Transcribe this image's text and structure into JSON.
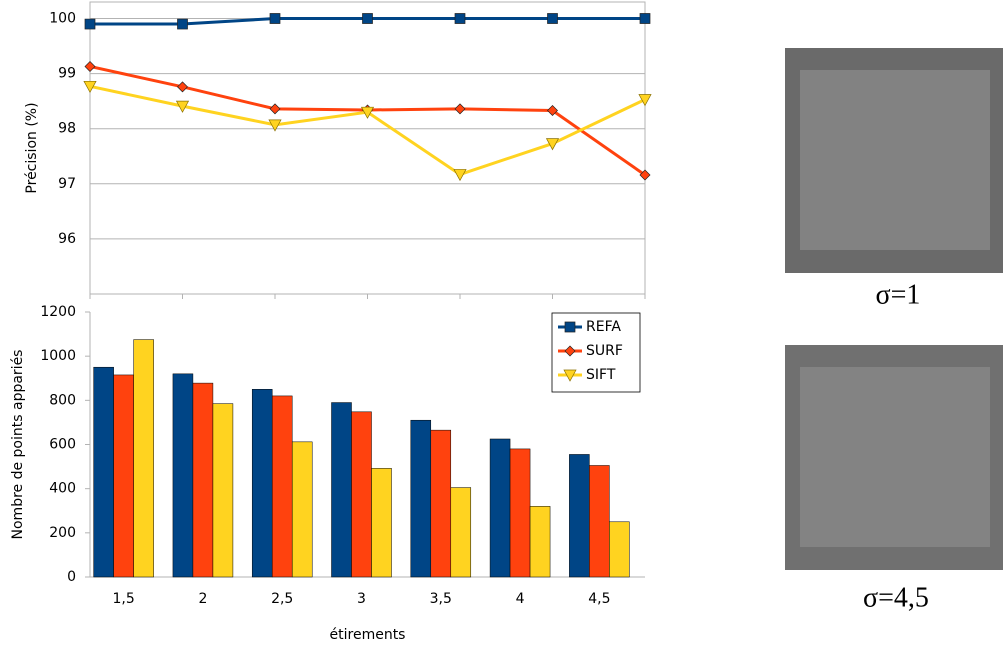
{
  "chart_data": [
    {
      "type": "line",
      "y_label": "Précision (%)",
      "x": [
        1.5,
        2,
        2.5,
        3,
        3.5,
        4,
        4.5
      ],
      "xlim": [
        1.5,
        4.5
      ],
      "ylim": [
        95,
        100.3
      ],
      "yticks": [
        96,
        97,
        98,
        99,
        100
      ],
      "grid": true,
      "series": [
        {
          "color": "#004586",
          "marker": "square",
          "values": [
            99.9,
            99.9,
            100,
            100,
            100,
            100,
            100
          ]
        },
        {
          "color": "#ff420e",
          "marker": "diamond",
          "values": [
            99.13,
            98.76,
            98.36,
            98.34,
            98.36,
            98.33,
            97.16
          ]
        },
        {
          "color": "#ffd320",
          "marker": "triangle-down",
          "values": [
            98.77,
            98.41,
            98.07,
            98.3,
            97.17,
            97.73,
            98.53
          ]
        }
      ]
    },
    {
      "type": "bar",
      "y_label": "Nombre de points appariés",
      "x_label": "étirements",
      "categories": [
        "1,5",
        "2",
        "2,5",
        "3",
        "3,5",
        "4",
        "4,5"
      ],
      "ylim": [
        0,
        1200
      ],
      "yticks": [
        0,
        200,
        400,
        600,
        800,
        1000,
        1200
      ],
      "grid": false,
      "legend": "top-right",
      "series": [
        {
          "name": "REFA",
          "color": "#004586",
          "marker": "square",
          "values": [
            950,
            920,
            850,
            790,
            710,
            625,
            555
          ]
        },
        {
          "name": "SURF",
          "color": "#ff420e",
          "marker": "diamond",
          "values": [
            915,
            878,
            820,
            748,
            665,
            580,
            505
          ]
        },
        {
          "name": "SIFT",
          "color": "#ffd320",
          "marker": "triangle-down",
          "values": [
            1075,
            785,
            612,
            492,
            405,
            320,
            250
          ]
        }
      ]
    }
  ],
  "images": [
    {
      "caption": "σ=1"
    },
    {
      "caption": "σ=4,5"
    }
  ]
}
